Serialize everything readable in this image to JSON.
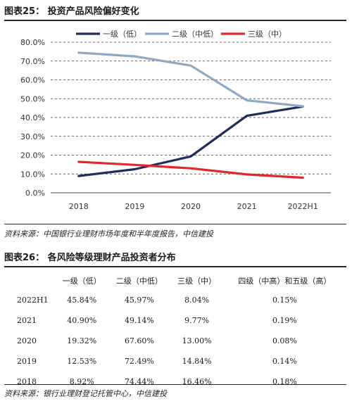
{
  "figure25": {
    "title": "图表25：  投资产品风险偏好变化",
    "source": "资料来源：中国银行业理财市场年度和半年度报告，中信建投"
  },
  "chart_data": {
    "type": "line",
    "title": "",
    "xlabel": "",
    "ylabel": "",
    "x": [
      "2018",
      "2019",
      "2020",
      "2021",
      "2022H1"
    ],
    "ylim": [
      0,
      80
    ],
    "yticks": [
      "0.0%",
      "10.0%",
      "20.0%",
      "30.0%",
      "40.0%",
      "50.0%",
      "60.0%",
      "70.0%",
      "80.0%"
    ],
    "grid": "horizontal dashed",
    "legend": "top",
    "series": [
      {
        "name": "一级（低）",
        "color": "#1f2d5c",
        "values": [
          8.92,
          12.53,
          19.32,
          40.9,
          45.84
        ]
      },
      {
        "name": "二级（中低）",
        "color": "#8fa8c4",
        "values": [
          74.44,
          72.49,
          67.6,
          49.14,
          45.97
        ]
      },
      {
        "name": "三级（中）",
        "color": "#e3262a",
        "values": [
          16.46,
          14.84,
          13.0,
          9.77,
          8.04
        ]
      }
    ]
  },
  "figure26": {
    "title": "图表26：  各风险等级理财产品投资者分布",
    "columns": [
      "",
      "一级（低）",
      "二级（中低）",
      "三级（中）",
      "四级（中高）和五级（高）"
    ],
    "rows": [
      [
        "2022H1",
        "45.84%",
        "45.97%",
        "8.04%",
        "0.15%"
      ],
      [
        "2021",
        "40.90%",
        "49.14%",
        "9.77%",
        "0.19%"
      ],
      [
        "2020",
        "19.32%",
        "67.60%",
        "13.00%",
        "0.08%"
      ],
      [
        "2019",
        "12.53%",
        "72.49%",
        "14.84%",
        "0.14%"
      ],
      [
        "2018",
        "8.92%",
        "74.44%",
        "16.46%",
        "0.18%"
      ]
    ],
    "source": "资料来源：银行业理财登记托管中心，中信建投"
  }
}
